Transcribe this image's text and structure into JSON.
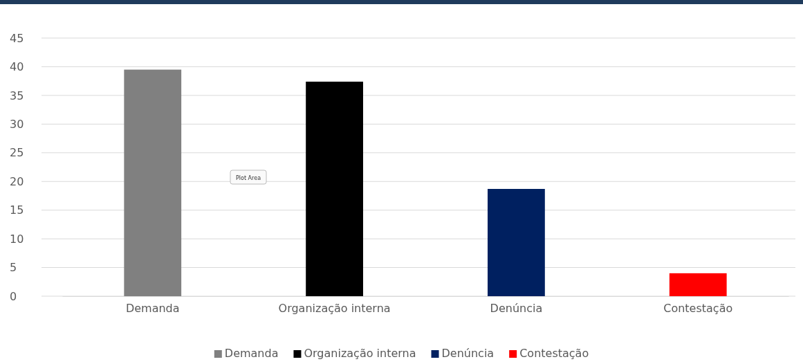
{
  "chart_data": {
    "type": "bar",
    "categories": [
      "Demanda",
      "Organização interna",
      "Denúncia",
      "Contestação"
    ],
    "series": [
      {
        "name": "Demanda",
        "color": "#808080",
        "values": [
          39.5,
          null,
          null,
          null
        ]
      },
      {
        "name": "Organização interna",
        "color": "#000000",
        "values": [
          null,
          37.4,
          null,
          null
        ]
      },
      {
        "name": "Denúncia",
        "color": "#002060",
        "values": [
          null,
          null,
          18.7,
          null
        ]
      },
      {
        "name": "Contestação",
        "color": "#ff0000",
        "values": [
          null,
          null,
          null,
          4.0
        ]
      }
    ],
    "ylim": [
      0,
      45
    ],
    "yticks": [
      0,
      5,
      10,
      15,
      20,
      25,
      30,
      35,
      40,
      45
    ],
    "grid": "y",
    "legend": "bottom",
    "annotations": [
      "Plot Area"
    ]
  }
}
